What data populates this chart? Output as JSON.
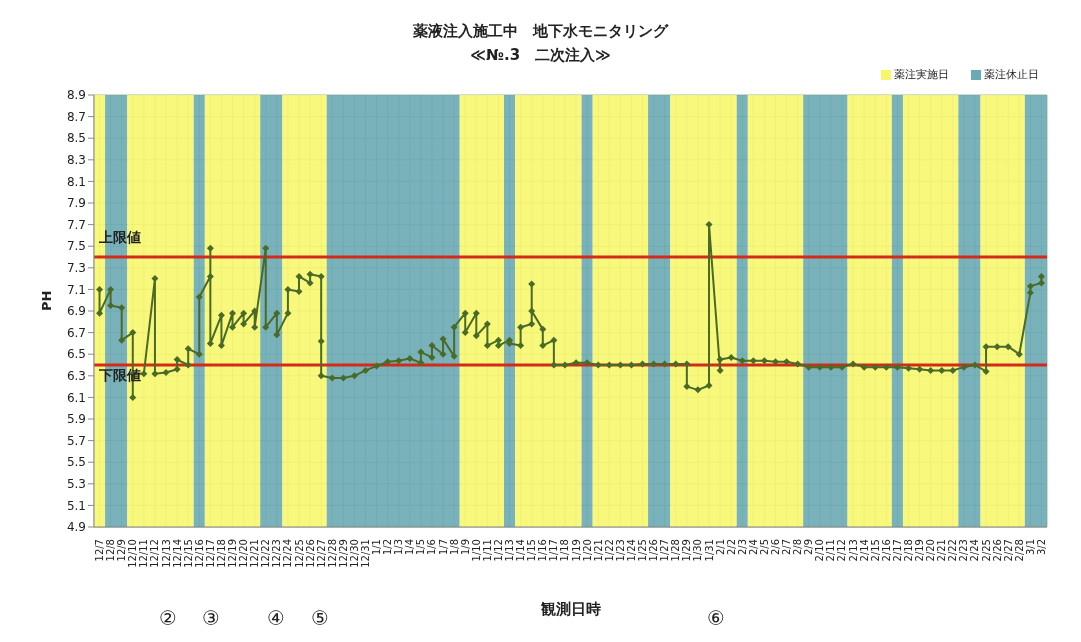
{
  "chart_data": {
    "type": "line",
    "title": "薬液注入施工中　地下水モニタリング",
    "subtitle": "≪№.3　二次注入≫",
    "xlabel": "観測日時",
    "ylabel": "PH",
    "categories": [
      "12/7",
      "12/8",
      "12/9",
      "12/10",
      "12/11",
      "12/12",
      "12/13",
      "12/14",
      "12/15",
      "12/16",
      "12/17",
      "12/18",
      "12/19",
      "12/20",
      "12/21",
      "12/22",
      "12/23",
      "12/24",
      "12/25",
      "12/26",
      "12/27",
      "12/28",
      "12/29",
      "12/30",
      "12/31",
      "1/1",
      "1/2",
      "1/3",
      "1/4",
      "1/5",
      "1/6",
      "1/7",
      "1/8",
      "1/9",
      "1/10",
      "1/11",
      "1/12",
      "1/13",
      "1/14",
      "1/15",
      "1/16",
      "1/17",
      "1/18",
      "1/19",
      "1/20",
      "1/21",
      "1/22",
      "1/23",
      "1/24",
      "1/25",
      "1/26",
      "1/27",
      "1/28",
      "1/29",
      "1/30",
      "1/31",
      "2/1",
      "2/2",
      "2/3",
      "2/4",
      "2/5",
      "2/6",
      "2/7",
      "2/8",
      "2/9",
      "2/10",
      "2/11",
      "2/12",
      "2/13",
      "2/14",
      "2/15",
      "2/16",
      "2/17",
      "2/18",
      "2/19",
      "2/20",
      "2/21",
      "2/22",
      "2/23",
      "2/24",
      "2/25",
      "2/26",
      "2/27",
      "2/28",
      "3/1",
      "3/2"
    ],
    "series": [
      {
        "color": "#4a6b28",
        "x": [
          "12/7",
          "12/7",
          "12/8",
          "12/8",
          "12/9",
          "12/9",
          "12/10",
          "12/10",
          "12/10",
          "12/11",
          "12/12",
          "12/12",
          "12/13",
          "12/14",
          "12/14",
          "12/15",
          "12/15",
          "12/16",
          "12/16",
          "12/17",
          "12/17",
          "12/17",
          "12/18",
          "12/18",
          "12/19",
          "12/19",
          "12/20",
          "12/20",
          "12/21",
          "12/21",
          "12/22",
          "12/22",
          "12/23",
          "12/23",
          "12/24",
          "12/24",
          "12/25",
          "12/25",
          "12/26",
          "12/26",
          "12/27",
          "12/27",
          "12/27",
          "12/28",
          "12/29",
          "12/30",
          "12/31",
          "1/1",
          "1/2",
          "1/3",
          "1/4",
          "1/5",
          "1/5",
          "1/6",
          "1/6",
          "1/7",
          "1/7",
          "1/8",
          "1/8",
          "1/9",
          "1/9",
          "1/10",
          "1/10",
          "1/11",
          "1/11",
          "1/12",
          "1/12",
          "1/13",
          "1/13",
          "1/14",
          "1/14",
          "1/15",
          "1/15",
          "1/15",
          "1/16",
          "1/16",
          "1/17",
          "1/17",
          "1/18",
          "1/19",
          "1/20",
          "1/21",
          "1/22",
          "1/23",
          "1/24",
          "1/25",
          "1/26",
          "1/27",
          "1/28",
          "1/29",
          "1/29",
          "1/30",
          "1/31",
          "1/31",
          "2/1",
          "2/1",
          "2/2",
          "2/3",
          "2/4",
          "2/5",
          "2/6",
          "2/7",
          "2/8",
          "2/9",
          "2/10",
          "2/11",
          "2/12",
          "2/13",
          "2/14",
          "2/15",
          "2/16",
          "2/17",
          "2/18",
          "2/19",
          "2/20",
          "2/21",
          "2/22",
          "2/23",
          "2/24",
          "2/25",
          "2/25",
          "2/26",
          "2/27",
          "2/28",
          "3/1",
          "3/1",
          "3/2",
          "3/2"
        ],
        "values": [
          7.1,
          6.88,
          7.1,
          6.95,
          6.93,
          6.63,
          6.7,
          6.1,
          6.32,
          6.32,
          7.2,
          6.32,
          6.33,
          6.36,
          6.45,
          6.4,
          6.55,
          6.5,
          7.03,
          7.22,
          7.48,
          6.6,
          6.86,
          6.58,
          6.88,
          6.75,
          6.88,
          6.78,
          6.9,
          6.75,
          7.48,
          6.75,
          6.88,
          6.68,
          6.88,
          7.1,
          7.08,
          7.22,
          7.16,
          7.24,
          7.22,
          6.62,
          6.3,
          6.28,
          6.28,
          6.3,
          6.35,
          6.39,
          6.43,
          6.44,
          6.46,
          6.42,
          6.52,
          6.47,
          6.58,
          6.5,
          6.64,
          6.48,
          6.75,
          6.88,
          6.7,
          6.88,
          6.67,
          6.78,
          6.58,
          6.63,
          6.58,
          6.63,
          6.6,
          6.58,
          6.75,
          6.78,
          7.15,
          6.9,
          6.73,
          6.58,
          6.63,
          6.4,
          6.4,
          6.42,
          6.42,
          6.4,
          6.4,
          6.4,
          6.4,
          6.41,
          6.41,
          6.41,
          6.41,
          6.41,
          6.2,
          6.17,
          6.21,
          7.7,
          6.35,
          6.45,
          6.47,
          6.44,
          6.44,
          6.44,
          6.43,
          6.43,
          6.41,
          6.38,
          6.38,
          6.38,
          6.38,
          6.41,
          6.38,
          6.38,
          6.38,
          6.38,
          6.37,
          6.36,
          6.35,
          6.35,
          6.35,
          6.38,
          6.4,
          6.34,
          6.57,
          6.57,
          6.57,
          6.5,
          7.07,
          7.13,
          7.16,
          7.22
        ]
      }
    ],
    "ylim": [
      4.9,
      8.9
    ],
    "yticks": [
      4.9,
      5.1,
      5.3,
      5.5,
      5.7,
      5.9,
      6.1,
      6.3,
      6.5,
      6.7,
      6.9,
      7.1,
      7.3,
      7.5,
      7.7,
      7.9,
      8.1,
      8.3,
      8.5,
      8.7,
      8.9
    ],
    "grid": true,
    "marker": "diamond",
    "line_style": "solid",
    "legend": "top right",
    "ref_lines": [
      {
        "axis": "y",
        "value": 7.4,
        "label": "上限値",
        "color": "#d42a1a"
      },
      {
        "axis": "y",
        "value": 6.4,
        "label": "下限値",
        "color": "#d42a1a"
      }
    ],
    "bands": [
      {
        "axis": "x",
        "from": "12/7",
        "to": "12/7",
        "label": "薬注実施日",
        "color": "#f7f76e"
      },
      {
        "axis": "x",
        "from": "12/8",
        "to": "12/9",
        "label": "薬注休止日",
        "color": "#6aaab2"
      },
      {
        "axis": "x",
        "from": "12/10",
        "to": "12/15",
        "color": "#f7f76e"
      },
      {
        "axis": "x",
        "from": "12/16",
        "to": "12/16",
        "color": "#6aaab2"
      },
      {
        "axis": "x",
        "from": "12/17",
        "to": "12/21",
        "color": "#f7f76e"
      },
      {
        "axis": "x",
        "from": "12/22",
        "to": "12/23",
        "color": "#6aaab2"
      },
      {
        "axis": "x",
        "from": "12/24",
        "to": "12/27",
        "color": "#f7f76e"
      },
      {
        "axis": "x",
        "from": "12/28",
        "to": "1/8",
        "color": "#6aaab2"
      },
      {
        "axis": "x",
        "from": "1/9",
        "to": "1/12",
        "color": "#f7f76e"
      },
      {
        "axis": "x",
        "from": "1/13",
        "to": "1/13",
        "color": "#6aaab2"
      },
      {
        "axis": "x",
        "from": "1/14",
        "to": "1/19",
        "color": "#f7f76e"
      },
      {
        "axis": "x",
        "from": "1/20",
        "to": "1/20",
        "color": "#6aaab2"
      },
      {
        "axis": "x",
        "from": "1/21",
        "to": "1/25",
        "color": "#f7f76e"
      },
      {
        "axis": "x",
        "from": "1/26",
        "to": "1/27",
        "color": "#6aaab2"
      },
      {
        "axis": "x",
        "from": "1/28",
        "to": "2/2",
        "color": "#f7f76e"
      },
      {
        "axis": "x",
        "from": "2/3",
        "to": "2/3",
        "color": "#6aaab2"
      },
      {
        "axis": "x",
        "from": "2/4",
        "to": "2/8",
        "color": "#f7f76e"
      },
      {
        "axis": "x",
        "from": "2/9",
        "to": "2/12",
        "color": "#6aaab2"
      },
      {
        "axis": "x",
        "from": "2/13",
        "to": "2/16",
        "color": "#f7f76e"
      },
      {
        "axis": "x",
        "from": "2/17",
        "to": "2/17",
        "color": "#6aaab2"
      },
      {
        "axis": "x",
        "from": "2/18",
        "to": "2/22",
        "color": "#f7f76e"
      },
      {
        "axis": "x",
        "from": "2/23",
        "to": "2/24",
        "color": "#6aaab2"
      },
      {
        "axis": "x",
        "from": "2/25",
        "to": "2/28",
        "color": "#f7f76e"
      },
      {
        "axis": "x",
        "from": "3/1",
        "to": "3/2",
        "color": "#6aaab2"
      }
    ],
    "annotations": [
      "②",
      "③",
      "④",
      "⑤",
      "⑥"
    ]
  }
}
